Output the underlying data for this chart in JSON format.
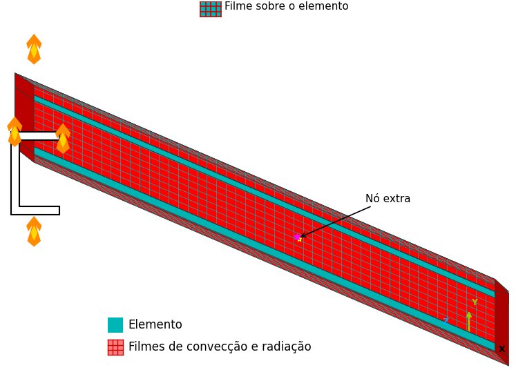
{
  "bg_color": "#ffffff",
  "teal_color": "#00B5B5",
  "red_color": "#FF0000",
  "dark_red_color": "#CC0000",
  "legend_film_label": "Filme sobre o elemento",
  "legend_elemento_label": "Elemento",
  "legend_filmes_label": "Filmes de convecção e radiação",
  "no_extra_label": "Nó extra",
  "axis_Y_color": "#99CC00",
  "axis_Z_color": "#00AAFF",
  "axis_X_color": "#000000"
}
